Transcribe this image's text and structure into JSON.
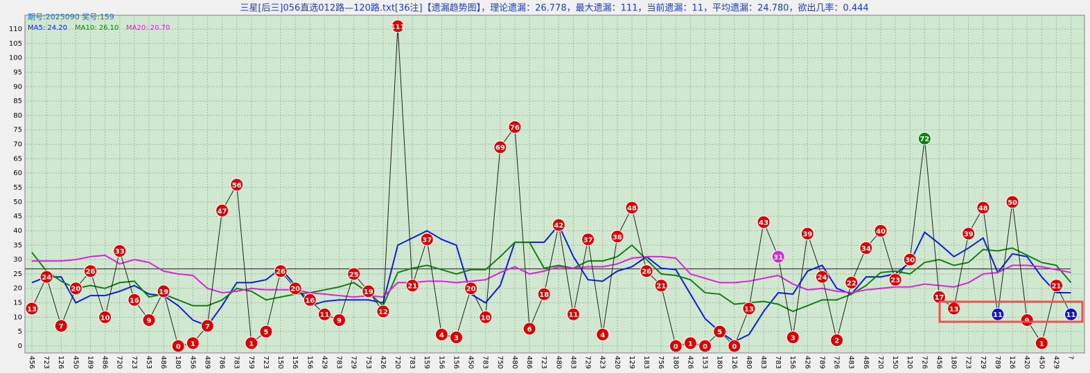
{
  "chart_data": {
    "type": "line",
    "title": "三星[后三]056直选012路—120路.txt[36注]【遗漏趋势图】，理论遗漏：26.778，最大遗漏：111，当前遗漏：11，平均遗漏：24.780，欲出几率：0.444",
    "info": "期号:2025090 奖号:159",
    "categories": [
      "456",
      "723",
      "126",
      "450",
      "189",
      "486",
      "720",
      "723",
      "453",
      "486",
      "180",
      "456",
      "489",
      "786",
      "783",
      "759",
      "723",
      "150",
      "156",
      "156",
      "429",
      "783",
      "729",
      "753",
      "426",
      "720",
      "783",
      "159",
      "156",
      "156",
      "450",
      "783",
      "750",
      "480",
      "486",
      "723",
      "480",
      "483",
      "729",
      "423",
      "420",
      "129",
      "183",
      "756",
      "180",
      "426",
      "153",
      "180",
      "126",
      "480",
      "483",
      "783",
      "156",
      "426",
      "789",
      "726",
      "483",
      "486",
      "720",
      "150",
      "120",
      "726",
      "456",
      "180",
      "723",
      "729",
      "789",
      "126",
      "420",
      "450",
      "429",
      "?"
    ],
    "values": [
      13,
      24,
      7,
      20,
      26,
      10,
      33,
      16,
      9,
      19,
      0,
      1,
      7,
      47,
      56,
      1,
      5,
      26,
      20,
      16,
      11,
      9,
      25,
      19,
      12,
      111,
      21,
      37,
      4,
      3,
      20,
      10,
      69,
      76,
      6,
      18,
      42,
      11,
      37,
      4,
      38,
      48,
      26,
      21,
      0,
      1,
      0,
      5,
      0,
      13,
      43,
      31,
      3,
      39,
      24,
      2,
      22,
      34,
      40,
      23,
      30,
      72,
      17,
      13,
      39,
      48,
      11,
      50,
      9,
      1,
      21,
      11
    ],
    "marker_color": "#e00000",
    "marker_overrides": {
      "51": "#e020e0",
      "61": "#108010",
      "66": "#1010d0",
      "71": "#1010d0"
    },
    "line_color": "#202020",
    "reference_line": 26.778,
    "reference_color": "#404040",
    "series": [
      {
        "name": "MA5: 24.20",
        "color": "#0a1ee6",
        "values": [
          22,
          24,
          24,
          15,
          17.5,
          17.5,
          19,
          21,
          18,
          17.5,
          14,
          9,
          7,
          14,
          22,
          22,
          23,
          27,
          21,
          14,
          15.5,
          16,
          16,
          16,
          15,
          35,
          37.5,
          40,
          37,
          35,
          18,
          15,
          21,
          36,
          36,
          36,
          42,
          31,
          23,
          22.5,
          26,
          27.5,
          31,
          27,
          26.5,
          18,
          9.5,
          5,
          1.5,
          4,
          12,
          18.5,
          18,
          26,
          28,
          20,
          18,
          24,
          24,
          25,
          29,
          39.5,
          35.5,
          31,
          34,
          37.5,
          25.5,
          32,
          31,
          24,
          18.5,
          18.5
        ]
      },
      {
        "name": "MA10: 26.10",
        "color": "#108010",
        "values": [
          32.5,
          26,
          22.5,
          20,
          21,
          20,
          22,
          22.5,
          17,
          18,
          16,
          14,
          14,
          16,
          20,
          19,
          16,
          17,
          18,
          18.5,
          19.5,
          20.5,
          22,
          18.5,
          14,
          25.5,
          27,
          28,
          26.5,
          25,
          26.5,
          26.5,
          31,
          36,
          36,
          27,
          28,
          27,
          29.5,
          29.5,
          31,
          35,
          30,
          25,
          24.5,
          23,
          18.5,
          18,
          14.5,
          15,
          15.5,
          14.5,
          12,
          14,
          16,
          16,
          18,
          21,
          25.5,
          26,
          25,
          29,
          30,
          28,
          29,
          33.5,
          33,
          34,
          31.5,
          29,
          28,
          22
        ]
      },
      {
        "name": "MA20: 20.70",
        "color": "#e020e0",
        "values": [
          29.5,
          29.5,
          29.5,
          30,
          31,
          31.5,
          28.5,
          30,
          29,
          26,
          25,
          24.5,
          20,
          18.5,
          19,
          20,
          19.5,
          19.5,
          19.5,
          18.5,
          18,
          17.5,
          17,
          17.5,
          17,
          22,
          22,
          22.5,
          22.5,
          22,
          22.5,
          23,
          25.5,
          27.5,
          25,
          26,
          27.5,
          27,
          27.5,
          27.5,
          28.5,
          30.5,
          31,
          31,
          30.5,
          25,
          23.5,
          22,
          22,
          22.5,
          23.5,
          24.5,
          21.5,
          19.5,
          20,
          19,
          18.5,
          19.5,
          20,
          20.5,
          20.5,
          21.5,
          21,
          20.5,
          22,
          25,
          25.5,
          28,
          28,
          27.5,
          26.5,
          25.5
        ]
      }
    ],
    "ylim": [
      0,
      110
    ],
    "yticks": [
      0,
      5,
      10,
      15,
      20,
      25,
      30,
      35,
      40,
      45,
      50,
      55,
      60,
      65,
      70,
      75,
      80,
      85,
      90,
      95,
      100,
      105,
      110
    ],
    "grid": true
  }
}
